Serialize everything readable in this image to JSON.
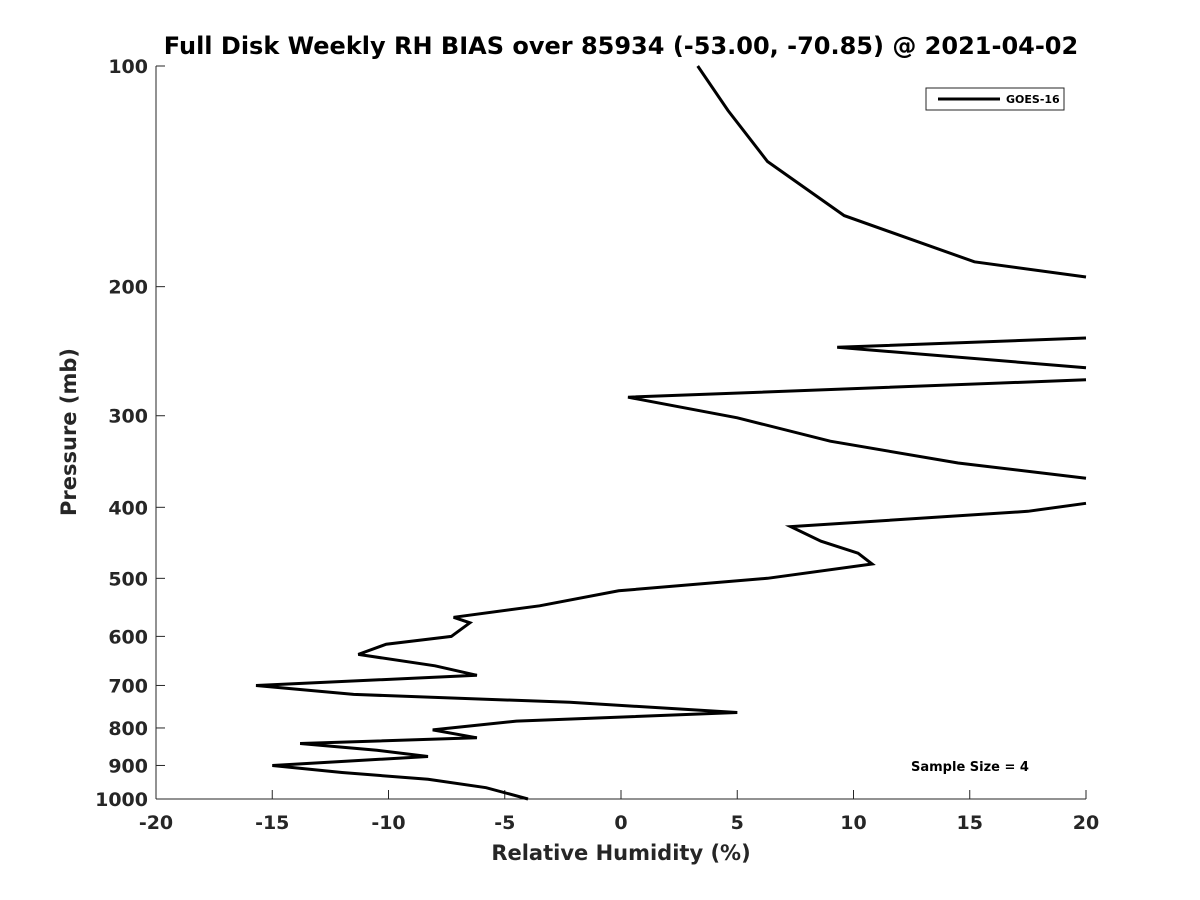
{
  "chart_data": {
    "type": "line",
    "title": "Full Disk Weekly RH BIAS over 85934 (-53.00, -70.85) @ 2021-04-02",
    "xlabel": "Relative Humidity (%)",
    "ylabel": "Pressure (mb)",
    "xlim": [
      -20,
      20
    ],
    "ylim": [
      100,
      1000
    ],
    "y_scale": "log",
    "y_reversed": true,
    "x_ticks": [
      "-20",
      "-15",
      "-10",
      "-5",
      "0",
      "5",
      "10",
      "15",
      "20"
    ],
    "y_ticks": [
      "100",
      "200",
      "300",
      "400",
      "500",
      "600",
      "700",
      "800",
      "900",
      "1000"
    ],
    "grid": false,
    "legend": {
      "position": "top-right",
      "entries": [
        "GOES-16"
      ]
    },
    "annotation": "Sample Size = 4",
    "series": [
      {
        "name": "GOES-16",
        "color": "#000000",
        "points": [
          [
            3.3,
            100
          ],
          [
            4.6,
            115
          ],
          [
            6.3,
            135
          ],
          [
            9.6,
            160
          ],
          [
            15.2,
            185
          ],
          [
            20.0,
            194
          ],
          [
            null,
            null
          ],
          [
            20.0,
            235
          ],
          [
            9.3,
            242
          ],
          [
            20.0,
            258
          ],
          [
            null,
            null
          ],
          [
            20.0,
            268
          ],
          [
            0.3,
            283
          ],
          [
            5.0,
            302
          ],
          [
            9.0,
            325
          ],
          [
            14.5,
            348
          ],
          [
            20.0,
            365
          ],
          [
            null,
            null
          ],
          [
            20.0,
            395
          ],
          [
            17.5,
            405
          ],
          [
            7.3,
            425
          ],
          [
            8.6,
            445
          ],
          [
            10.2,
            462
          ],
          [
            10.8,
            478
          ],
          [
            6.3,
            500
          ],
          [
            -0.1,
            520
          ],
          [
            -3.5,
            545
          ],
          [
            -7.2,
            565
          ],
          [
            -6.5,
            575
          ],
          [
            -7.3,
            600
          ],
          [
            -10.1,
            615
          ],
          [
            -11.3,
            635
          ],
          [
            -8.0,
            658
          ],
          [
            -6.2,
            678
          ],
          [
            -15.7,
            700
          ],
          [
            -11.5,
            720
          ],
          [
            -2.2,
            738
          ],
          [
            5.0,
            762
          ],
          [
            -4.5,
            783
          ],
          [
            -8.1,
            805
          ],
          [
            -6.2,
            825
          ],
          [
            -13.8,
            840
          ],
          [
            -10.5,
            858
          ],
          [
            -8.3,
            875
          ],
          [
            -15.0,
            900
          ],
          [
            -12.0,
            920
          ],
          [
            -8.3,
            940
          ],
          [
            -5.8,
            965
          ],
          [
            -4.0,
            1000
          ]
        ]
      }
    ]
  }
}
